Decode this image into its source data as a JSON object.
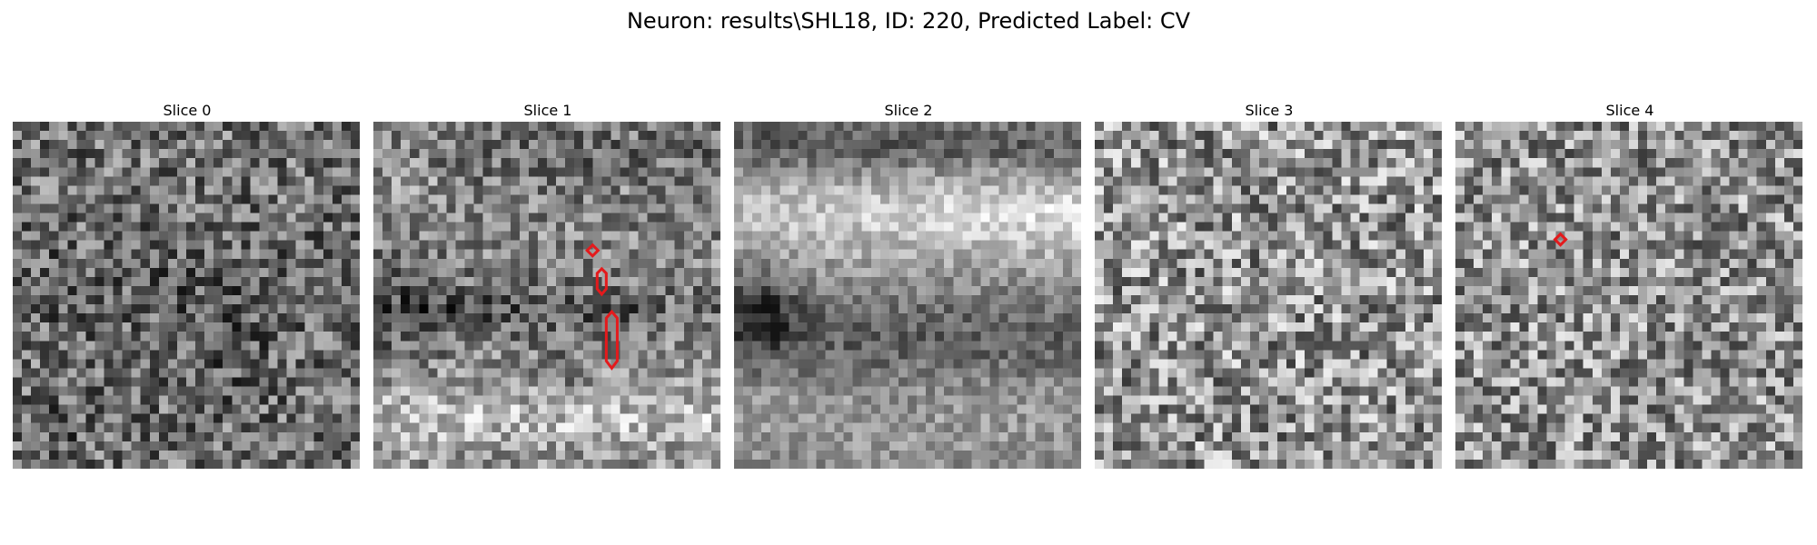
{
  "figure": {
    "suptitle": "Neuron: results\\SHL18, ID: 220, Predicted Label: CV"
  },
  "panels": [
    {
      "title": "Slice 0"
    },
    {
      "title": "Slice 1"
    },
    {
      "title": "Slice 2"
    },
    {
      "title": "Slice 3"
    },
    {
      "title": "Slice 4"
    }
  ],
  "colors": {
    "contour": "#e41a1c",
    "background": "#ffffff"
  }
}
